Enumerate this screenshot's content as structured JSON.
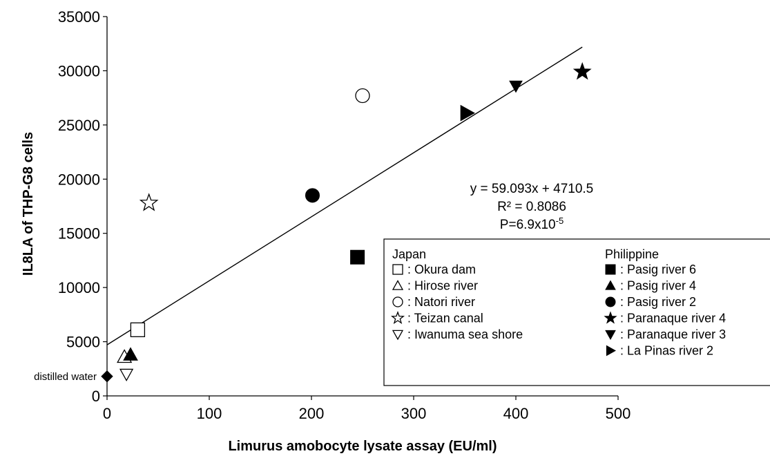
{
  "chart_data": {
    "type": "scatter",
    "xlabel": "Limurus amobocyte lysate assay (EU/ml)",
    "ylabel": "IL8LA of THP-G8 cells",
    "xlim": [
      0,
      500
    ],
    "ylim": [
      0,
      35000
    ],
    "x_ticks": [
      "0",
      "100",
      "200",
      "300",
      "400",
      "500"
    ],
    "y_ticks": [
      "0",
      "5000",
      "10000",
      "15000",
      "20000",
      "25000",
      "30000",
      "35000"
    ],
    "grid": false,
    "trendline": {
      "slope": 59.093,
      "intercept": 4710.5,
      "x_range": [
        0,
        465
      ],
      "equation": "y = 59.093x + 4710.5",
      "r2": "R² = 0.8086",
      "p_prefix": "P=6.9x10",
      "p_exp": "-5"
    },
    "annotation": {
      "text": "distilled water",
      "x": 0,
      "y": 1800
    },
    "legend": {
      "placement": "bottom-right",
      "groups": [
        {
          "title": "Japan",
          "entries": [
            {
              "marker": "square-open",
              "label": ": Okura dam"
            },
            {
              "marker": "triangle-up-open",
              "label": ": Hirose river"
            },
            {
              "marker": "circle-open",
              "label": ": Natori river"
            },
            {
              "marker": "star-open",
              "label": ": Teizan canal"
            },
            {
              "marker": "triangle-down-open",
              "label": ": Iwanuma sea shore"
            }
          ]
        },
        {
          "title": "Philippine",
          "entries": [
            {
              "marker": "square-filled",
              "label": ": Pasig river 6"
            },
            {
              "marker": "triangle-up-filled",
              "label": ": Pasig river 4"
            },
            {
              "marker": "circle-filled",
              "label": ": Pasig river 2"
            },
            {
              "marker": "star-filled",
              "label": ": Paranaque river 4"
            },
            {
              "marker": "triangle-down-filled",
              "label": ": Paranaque river 3"
            },
            {
              "marker": "triangle-right-filled",
              "label": ": La Pinas river 2"
            }
          ]
        }
      ]
    },
    "points": [
      {
        "series": "Okura dam",
        "marker": "square-open",
        "x": 30,
        "y": 6100
      },
      {
        "series": "Hirose river",
        "marker": "triangle-up-open",
        "x": 17,
        "y": 3600
      },
      {
        "series": "Natori river",
        "marker": "circle-open",
        "x": 250,
        "y": 27700
      },
      {
        "series": "Teizan canal",
        "marker": "star-open",
        "x": 41,
        "y": 17800
      },
      {
        "series": "Iwanuma sea shore",
        "marker": "triangle-down-open",
        "x": 19,
        "y": 2000
      },
      {
        "series": "Pasig river 6",
        "marker": "square-filled",
        "x": 245,
        "y": 12800
      },
      {
        "series": "Pasig river 4",
        "marker": "triangle-up-filled",
        "x": 23,
        "y": 3800
      },
      {
        "series": "Pasig river 2",
        "marker": "circle-filled",
        "x": 201,
        "y": 18500
      },
      {
        "series": "Paranaque river 4",
        "marker": "star-filled",
        "x": 465,
        "y": 29900
      },
      {
        "series": "Paranaque river 3",
        "marker": "triangle-down-filled",
        "x": 400,
        "y": 28600
      },
      {
        "series": "La Pinas river 2",
        "marker": "triangle-right-filled",
        "x": 352,
        "y": 26100
      },
      {
        "series": "distilled water",
        "marker": "diamond-filled",
        "x": 0,
        "y": 1800
      }
    ]
  }
}
